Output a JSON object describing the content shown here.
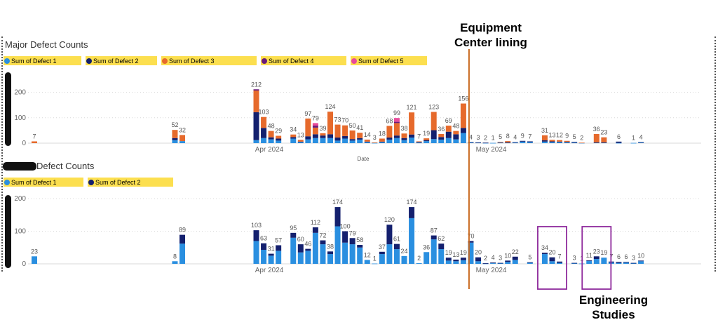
{
  "colors": {
    "defect1": "#2a8fe0",
    "defect2": "#14206e",
    "defect3": "#e66a2c",
    "defect4": "#6a1b7a",
    "defect5": "#e84a9a",
    "legend_bg": "#fcdf4f",
    "marker_line": "#c9691f",
    "highlight_box": "#8e2a9c"
  },
  "annotations": {
    "equipment_line1": "Equipment",
    "equipment_line2": "Center lining",
    "engineering_line1": "Engineering",
    "engineering_line2": "Studies"
  },
  "chart_data": [
    {
      "type": "bar",
      "stacked": true,
      "title": "Major Defect Counts",
      "xlabel": "Date",
      "ylabel": "",
      "ylim": [
        0,
        230
      ],
      "yticks": [
        0,
        100,
        200
      ],
      "grid": true,
      "legend": [
        "Sum of Defect 1",
        "Sum of Defect 2",
        "Sum of Defect 3",
        "Sum of Defect 4",
        "Sum of Defect 5"
      ],
      "xtick_labels": [
        {
          "label": "Apr 2024",
          "date": "2024-04-01"
        },
        {
          "label": "May 2024",
          "date": "2024-05-01"
        }
      ],
      "series_names": [
        "Sum of Defect 1",
        "Sum of Defect 2",
        "Sum of Defect 3",
        "Sum of Defect 4",
        "Sum of Defect 5"
      ],
      "bars": [
        {
          "date": "2024-03-01",
          "total": 7,
          "values": [
            0,
            0,
            7,
            0,
            0
          ]
        },
        {
          "date": "2024-03-20",
          "total": 52,
          "values": [
            12,
            8,
            32,
            0,
            0
          ]
        },
        {
          "date": "2024-03-21",
          "total": 32,
          "values": [
            8,
            0,
            24,
            0,
            0
          ]
        },
        {
          "date": "2024-03-31",
          "total": 212,
          "values": [
            12,
            110,
            85,
            5,
            0
          ]
        },
        {
          "date": "2024-04-01",
          "total": 103,
          "values": [
            20,
            40,
            43,
            0,
            0
          ]
        },
        {
          "date": "2024-04-02",
          "total": 48,
          "values": [
            15,
            8,
            25,
            0,
            0
          ]
        },
        {
          "date": "2024-04-03",
          "total": 29,
          "values": [
            10,
            8,
            11,
            0,
            0
          ]
        },
        {
          "date": "2024-04-05",
          "total": 34,
          "values": [
            18,
            6,
            10,
            0,
            0
          ]
        },
        {
          "date": "2024-04-06",
          "total": 13,
          "values": [
            4,
            2,
            7,
            0,
            0
          ]
        },
        {
          "date": "2024-04-07",
          "total": 97,
          "values": [
            15,
            12,
            70,
            0,
            0
          ]
        },
        {
          "date": "2024-04-08",
          "total": 79,
          "values": [
            20,
            15,
            26,
            8,
            10
          ]
        },
        {
          "date": "2024-04-09",
          "total": 39,
          "values": [
            20,
            10,
            9,
            0,
            0
          ]
        },
        {
          "date": "2024-04-10",
          "total": 124,
          "values": [
            20,
            15,
            89,
            0,
            0
          ]
        },
        {
          "date": "2024-04-11",
          "total": 73,
          "values": [
            10,
            12,
            51,
            0,
            0
          ]
        },
        {
          "date": "2024-04-12",
          "total": 70,
          "values": [
            18,
            10,
            42,
            0,
            0
          ]
        },
        {
          "date": "2024-04-13",
          "total": 50,
          "values": [
            10,
            6,
            34,
            0,
            0
          ]
        },
        {
          "date": "2024-04-14",
          "total": 41,
          "values": [
            14,
            6,
            21,
            0,
            0
          ]
        },
        {
          "date": "2024-04-15",
          "total": 14,
          "values": [
            4,
            2,
            8,
            0,
            0
          ]
        },
        {
          "date": "2024-04-16",
          "total": 3,
          "values": [
            1,
            0,
            2,
            0,
            0
          ]
        },
        {
          "date": "2024-04-17",
          "total": 18,
          "values": [
            4,
            2,
            12,
            0,
            0
          ]
        },
        {
          "date": "2024-04-18",
          "total": 68,
          "values": [
            14,
            8,
            46,
            0,
            0
          ]
        },
        {
          "date": "2024-04-19",
          "total": 99,
          "values": [
            20,
            10,
            49,
            5,
            15
          ]
        },
        {
          "date": "2024-04-20",
          "total": 38,
          "values": [
            12,
            8,
            18,
            0,
            0
          ]
        },
        {
          "date": "2024-04-21",
          "total": 121,
          "values": [
            22,
            12,
            87,
            0,
            0
          ]
        },
        {
          "date": "2024-04-22",
          "total": 7,
          "values": [
            2,
            3,
            2,
            0,
            0
          ]
        },
        {
          "date": "2024-04-23",
          "total": 19,
          "values": [
            8,
            4,
            7,
            0,
            0
          ]
        },
        {
          "date": "2024-04-24",
          "total": 123,
          "values": [
            16,
            35,
            72,
            0,
            0
          ]
        },
        {
          "date": "2024-04-25",
          "total": 36,
          "values": [
            14,
            10,
            12,
            0,
            0
          ]
        },
        {
          "date": "2024-04-26",
          "total": 69,
          "values": [
            20,
            25,
            24,
            0,
            0
          ]
        },
        {
          "date": "2024-04-27",
          "total": 48,
          "values": [
            15,
            20,
            13,
            0,
            0
          ]
        },
        {
          "date": "2024-04-28",
          "total": 156,
          "values": [
            40,
            20,
            96,
            0,
            0
          ]
        },
        {
          "date": "2024-04-29",
          "total": 4,
          "values": [
            3,
            1,
            0,
            0,
            0
          ]
        },
        {
          "date": "2024-04-30",
          "total": 3,
          "values": [
            2,
            1,
            0,
            0,
            0
          ]
        },
        {
          "date": "2024-05-01",
          "total": 2,
          "values": [
            1,
            1,
            0,
            0,
            0
          ]
        },
        {
          "date": "2024-05-02",
          "total": 1,
          "values": [
            1,
            0,
            0,
            0,
            0
          ]
        },
        {
          "date": "2024-05-03",
          "total": 5,
          "values": [
            2,
            2,
            1,
            0,
            0
          ]
        },
        {
          "date": "2024-05-04",
          "total": 8,
          "values": [
            2,
            1,
            5,
            0,
            0
          ]
        },
        {
          "date": "2024-05-05",
          "total": 4,
          "values": [
            2,
            2,
            0,
            0,
            0
          ]
        },
        {
          "date": "2024-05-06",
          "total": 9,
          "values": [
            6,
            3,
            0,
            0,
            0
          ]
        },
        {
          "date": "2024-05-07",
          "total": 7,
          "values": [
            4,
            3,
            0,
            0,
            0
          ]
        },
        {
          "date": "2024-05-09",
          "total": 31,
          "values": [
            6,
            5,
            20,
            0,
            0
          ]
        },
        {
          "date": "2024-05-10",
          "total": 13,
          "values": [
            4,
            3,
            6,
            0,
            0
          ]
        },
        {
          "date": "2024-05-11",
          "total": 12,
          "values": [
            4,
            2,
            6,
            0,
            0
          ]
        },
        {
          "date": "2024-05-12",
          "total": 9,
          "values": [
            3,
            2,
            4,
            0,
            0
          ]
        },
        {
          "date": "2024-05-13",
          "total": 5,
          "values": [
            2,
            3,
            0,
            0,
            0
          ]
        },
        {
          "date": "2024-05-14",
          "total": 2,
          "values": [
            1,
            0,
            1,
            0,
            0
          ]
        },
        {
          "date": "2024-05-16",
          "total": 36,
          "values": [
            2,
            1,
            33,
            0,
            0
          ]
        },
        {
          "date": "2024-05-17",
          "total": 23,
          "values": [
            2,
            1,
            20,
            0,
            0
          ]
        },
        {
          "date": "2024-05-19",
          "total": 6,
          "values": [
            1,
            5,
            0,
            0,
            0
          ]
        },
        {
          "date": "2024-05-21",
          "total": 1,
          "values": [
            1,
            0,
            0,
            0,
            0
          ]
        },
        {
          "date": "2024-05-22",
          "total": 4,
          "values": [
            3,
            1,
            0,
            0,
            0
          ]
        }
      ]
    },
    {
      "type": "bar",
      "stacked": true,
      "title": "Defect Counts",
      "xlabel": "",
      "ylabel": "",
      "ylim": [
        0,
        230
      ],
      "yticks": [
        0,
        100,
        200
      ],
      "grid": true,
      "legend": [
        "Sum of Defect 1",
        "Sum of Defect 2"
      ],
      "xtick_labels": [
        {
          "label": "Apr 2024",
          "date": "2024-04-01"
        },
        {
          "label": "May 2024",
          "date": "2024-05-01"
        }
      ],
      "series_names": [
        "Sum of Defect 1",
        "Sum of Defect 2"
      ],
      "bars": [
        {
          "date": "2024-03-01",
          "total": 23,
          "values": [
            23,
            0
          ]
        },
        {
          "date": "2024-03-20",
          "total": 8,
          "values": [
            8,
            0
          ]
        },
        {
          "date": "2024-03-21",
          "total": 89,
          "values": [
            62,
            27
          ]
        },
        {
          "date": "2024-03-31",
          "total": 103,
          "values": [
            70,
            33
          ]
        },
        {
          "date": "2024-04-01",
          "total": 63,
          "values": [
            43,
            20
          ]
        },
        {
          "date": "2024-04-02",
          "total": 31,
          "values": [
            25,
            6
          ]
        },
        {
          "date": "2024-04-03",
          "total": 57,
          "values": [
            40,
            17
          ]
        },
        {
          "date": "2024-04-05",
          "total": 95,
          "values": [
            80,
            15
          ]
        },
        {
          "date": "2024-04-06",
          "total": 60,
          "values": [
            35,
            25
          ]
        },
        {
          "date": "2024-04-07",
          "total": 46,
          "values": [
            40,
            6
          ]
        },
        {
          "date": "2024-04-08",
          "total": 112,
          "values": [
            95,
            17
          ]
        },
        {
          "date": "2024-04-09",
          "total": 72,
          "values": [
            60,
            12
          ]
        },
        {
          "date": "2024-04-10",
          "total": 38,
          "values": [
            30,
            8
          ]
        },
        {
          "date": "2024-04-11",
          "total": 174,
          "values": [
            115,
            59
          ]
        },
        {
          "date": "2024-04-12",
          "total": 100,
          "values": [
            65,
            35
          ]
        },
        {
          "date": "2024-04-13",
          "total": 79,
          "values": [
            60,
            19
          ]
        },
        {
          "date": "2024-04-14",
          "total": 58,
          "values": [
            50,
            8
          ]
        },
        {
          "date": "2024-04-15",
          "total": 12,
          "values": [
            12,
            0
          ]
        },
        {
          "date": "2024-04-16",
          "total": 1,
          "values": [
            1,
            0
          ]
        },
        {
          "date": "2024-04-17",
          "total": 37,
          "values": [
            30,
            7
          ]
        },
        {
          "date": "2024-04-18",
          "total": 120,
          "values": [
            60,
            60
          ]
        },
        {
          "date": "2024-04-19",
          "total": 61,
          "values": [
            45,
            16
          ]
        },
        {
          "date": "2024-04-20",
          "total": 24,
          "values": [
            24,
            0
          ]
        },
        {
          "date": "2024-04-21",
          "total": 174,
          "values": [
            140,
            34
          ]
        },
        {
          "date": "2024-04-22",
          "total": 2,
          "values": [
            2,
            0
          ]
        },
        {
          "date": "2024-04-23",
          "total": 36,
          "values": [
            36,
            0
          ]
        },
        {
          "date": "2024-04-24",
          "total": 87,
          "values": [
            75,
            12
          ]
        },
        {
          "date": "2024-04-25",
          "total": 62,
          "values": [
            45,
            17
          ]
        },
        {
          "date": "2024-04-26",
          "total": 19,
          "values": [
            10,
            9
          ]
        },
        {
          "date": "2024-04-27",
          "total": 13,
          "values": [
            8,
            5
          ]
        },
        {
          "date": "2024-04-28",
          "total": 19,
          "values": [
            11,
            8
          ]
        },
        {
          "date": "2024-04-29",
          "total": 70,
          "values": [
            65,
            5
          ]
        },
        {
          "date": "2024-04-30",
          "total": 20,
          "values": [
            8,
            12
          ]
        },
        {
          "date": "2024-05-01",
          "total": 2,
          "values": [
            1,
            1
          ]
        },
        {
          "date": "2024-05-02",
          "total": 4,
          "values": [
            2,
            2
          ]
        },
        {
          "date": "2024-05-03",
          "total": 3,
          "values": [
            2,
            1
          ]
        },
        {
          "date": "2024-05-04",
          "total": 10,
          "values": [
            6,
            4
          ]
        },
        {
          "date": "2024-05-05",
          "total": 22,
          "values": [
            12,
            10
          ]
        },
        {
          "date": "2024-05-07",
          "total": 5,
          "values": [
            4,
            1
          ]
        },
        {
          "date": "2024-05-09",
          "total": 34,
          "values": [
            30,
            4
          ]
        },
        {
          "date": "2024-05-10",
          "total": 20,
          "values": [
            8,
            12
          ]
        },
        {
          "date": "2024-05-11",
          "total": 7,
          "values": [
            3,
            4
          ]
        },
        {
          "date": "2024-05-13",
          "total": 3,
          "values": [
            2,
            1
          ]
        },
        {
          "date": "2024-05-14",
          "total": 1,
          "values": [
            1,
            0
          ]
        },
        {
          "date": "2024-05-15",
          "total": 11,
          "values": [
            9,
            2
          ]
        },
        {
          "date": "2024-05-16",
          "total": 23,
          "values": [
            15,
            8
          ]
        },
        {
          "date": "2024-05-17",
          "total": 19,
          "values": [
            19,
            0
          ]
        },
        {
          "date": "2024-05-18",
          "total": 7,
          "values": [
            4,
            3
          ]
        },
        {
          "date": "2024-05-19",
          "total": 6,
          "values": [
            3,
            3
          ]
        },
        {
          "date": "2024-05-20",
          "total": 6,
          "values": [
            4,
            2
          ]
        },
        {
          "date": "2024-05-21",
          "total": 3,
          "values": [
            2,
            1
          ]
        },
        {
          "date": "2024-05-22",
          "total": 10,
          "values": [
            8,
            2
          ]
        }
      ],
      "highlighted_dates": [
        [
          "2024-05-09",
          "2024-05-11"
        ],
        [
          "2024-05-15",
          "2024-05-17"
        ]
      ]
    }
  ]
}
